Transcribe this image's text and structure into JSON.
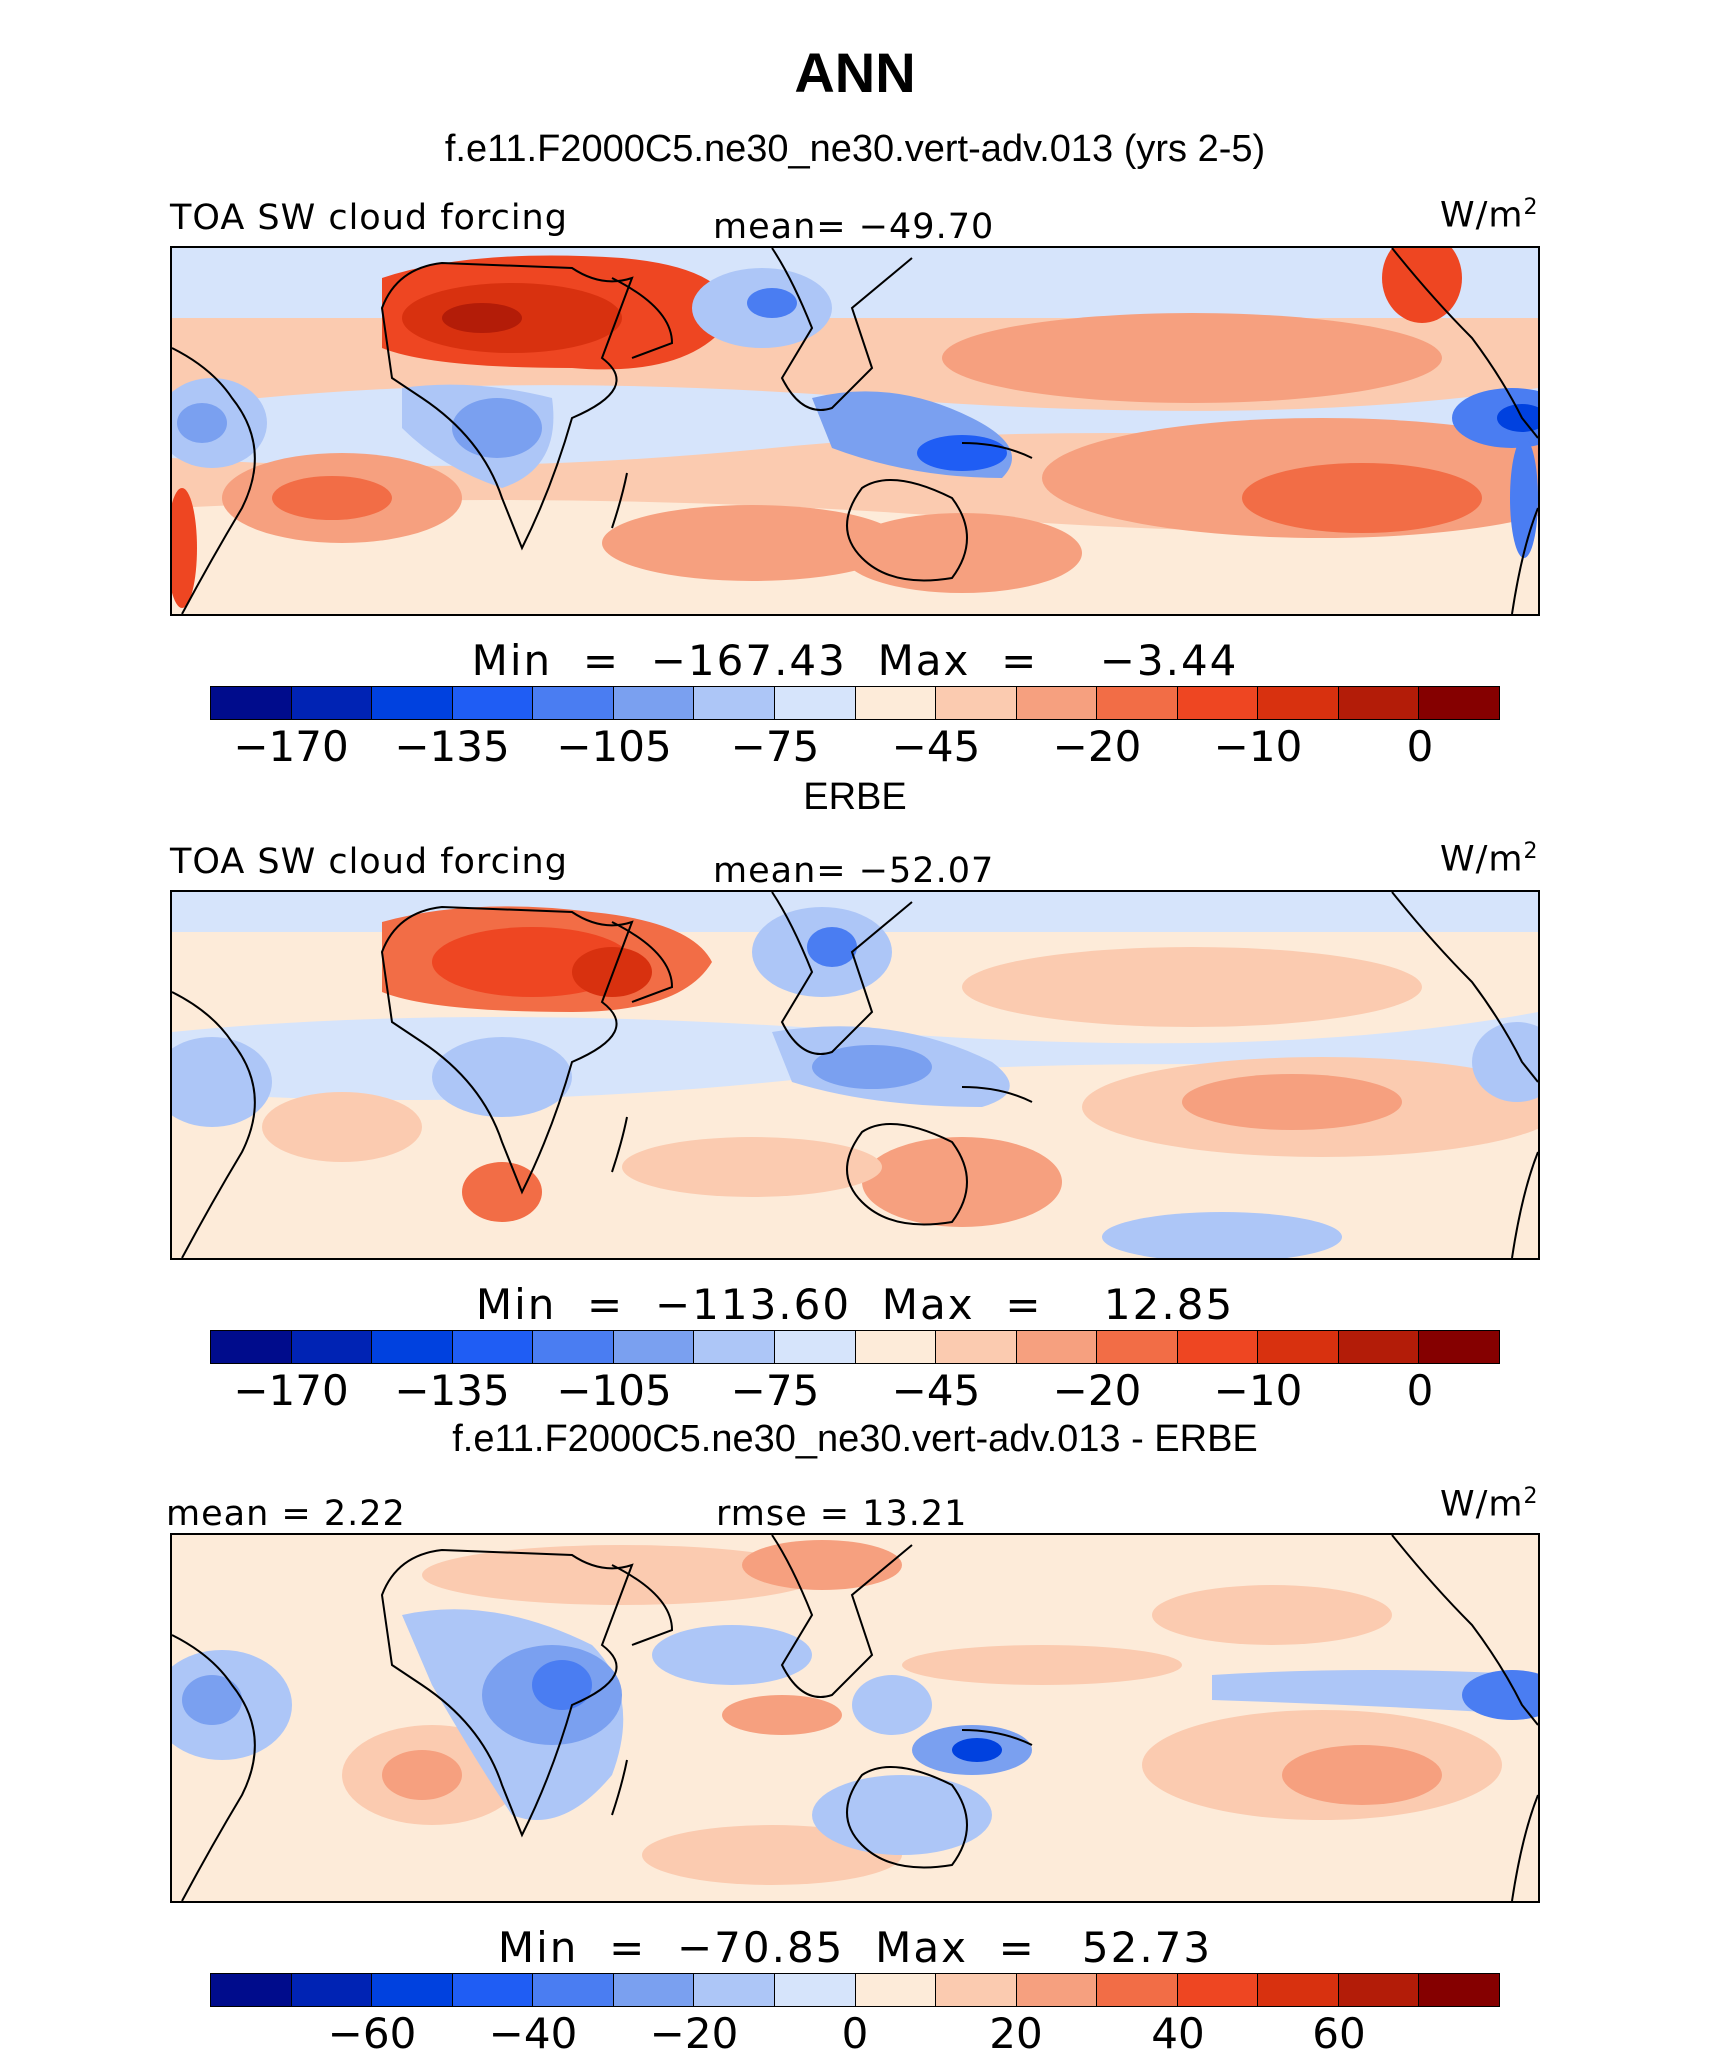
{
  "page": {
    "title": "ANN"
  },
  "panels": [
    {
      "heading": "f.e11.F2000C5.ne30_ne30.vert-adv.013 (yrs 2-5)",
      "left_label": "TOA SW cloud forcing",
      "center_label": "mean=  −49.70",
      "units": "W/m",
      "units_sup": "2",
      "minmax": "Min  =  −167.43  Max  =    −3.44",
      "field": "TOA SW cloud forcing",
      "style": "model"
    },
    {
      "heading": "ERBE",
      "left_label": "TOA SW cloud forcing",
      "center_label": "mean=  −52.07",
      "units": "W/m",
      "units_sup": "2",
      "minmax": "Min  =  −113.60  Max  =    12.85",
      "field": "TOA SW cloud forcing",
      "style": "obs"
    },
    {
      "heading": "f.e11.F2000C5.ne30_ne30.vert-adv.013 - ERBE",
      "left_label": "mean =    2.22",
      "center_label": "rmse  =   13.21",
      "units": "W/m",
      "units_sup": "2",
      "minmax": "Min  =  −70.85  Max  =   52.73",
      "field": "difference",
      "style": "diff"
    }
  ],
  "colorbars": {
    "colors": [
      "#000c8c",
      "#0023b4",
      "#0041df",
      "#1f5df4",
      "#4a7df2",
      "#7aa0f0",
      "#adc6f7",
      "#d6e4fb",
      "#fdebd9",
      "#fbcbb0",
      "#f6a07f",
      "#f26d46",
      "#ee4622",
      "#d8310f",
      "#b31c08",
      "#850000"
    ],
    "abs_ticks": [
      "−170",
      "−135",
      "−105",
      "−75",
      "−45",
      "−20",
      "−10",
      "0"
    ],
    "diff_ticks": [
      "−60",
      "−40",
      "−20",
      "0",
      "20",
      "40",
      "60"
    ]
  }
}
